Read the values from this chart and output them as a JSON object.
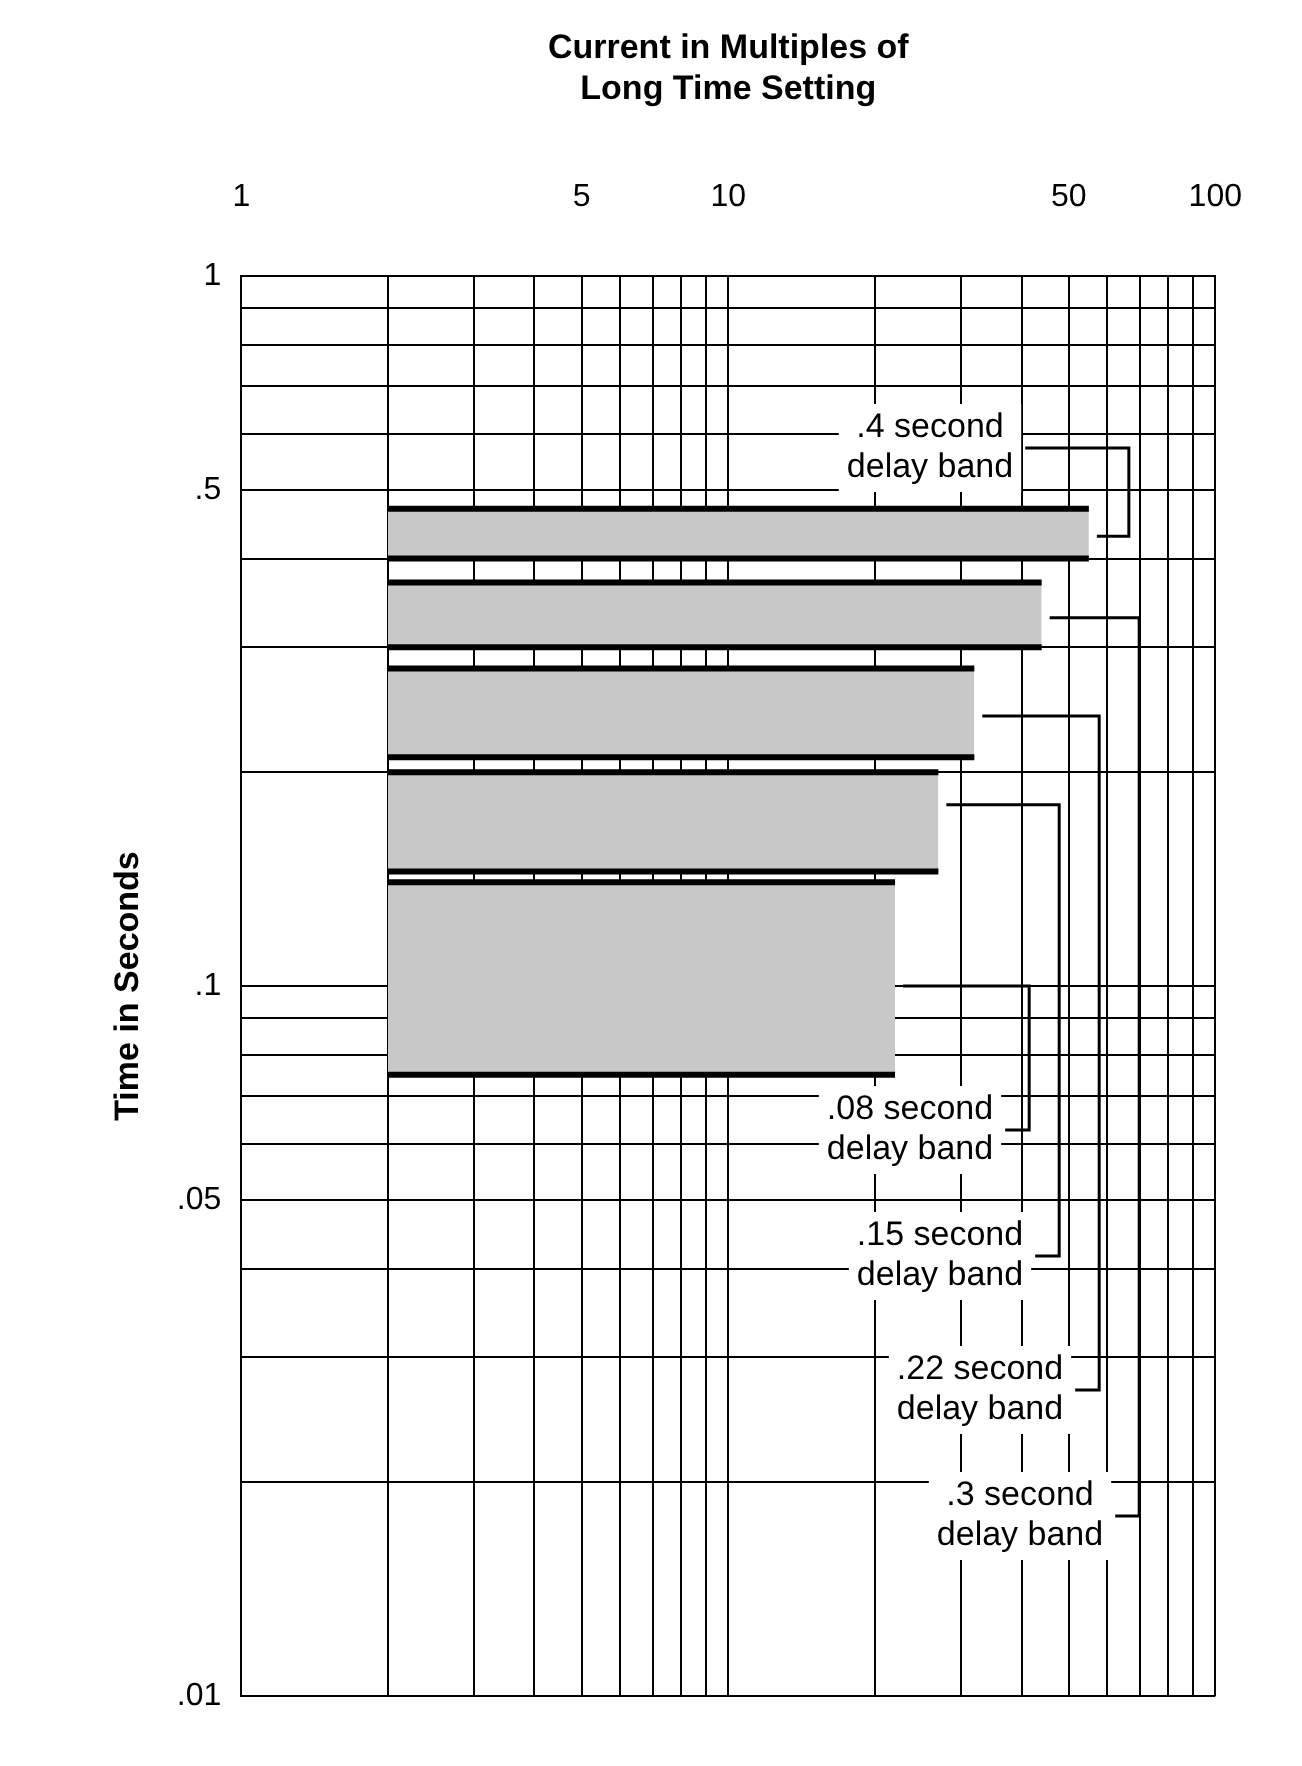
{
  "chart_data": {
    "type": "area",
    "xlabel": "Current in Multiples of Long Time Setting",
    "ylabel": "Time in Seconds",
    "log": "xy",
    "grid": true,
    "legend": false,
    "xlim": [
      1,
      100
    ],
    "ylim": [
      0.01,
      1
    ],
    "xticks": [
      1,
      {
        "value": 2,
        "label": null
      },
      {
        "value": 3,
        "label": null
      },
      {
        "value": 4,
        "label": null
      },
      5,
      {
        "value": 6,
        "label": null
      },
      {
        "value": 7,
        "label": null
      },
      {
        "value": 8,
        "label": null
      },
      {
        "value": 9,
        "label": null
      },
      10,
      {
        "value": 20,
        "label": null
      },
      {
        "value": 30,
        "label": null
      },
      {
        "value": 40,
        "label": null
      },
      50,
      {
        "value": 60,
        "label": null
      },
      {
        "value": 70,
        "label": null
      },
      {
        "value": 80,
        "label": null
      },
      {
        "value": 90,
        "label": null
      },
      100
    ],
    "yticks": [
      {
        "value": 0.01,
        "label": ".01"
      },
      {
        "value": 0.02,
        "label": null
      },
      {
        "value": 0.03,
        "label": null
      },
      {
        "value": 0.04,
        "label": null
      },
      {
        "value": 0.05,
        "label": ".05"
      },
      {
        "value": 0.06,
        "label": null
      },
      {
        "value": 0.07,
        "label": null
      },
      {
        "value": 0.08,
        "label": null
      },
      {
        "value": 0.09,
        "label": null
      },
      {
        "value": 0.1,
        "label": ".1"
      },
      {
        "value": 0.2,
        "label": null
      },
      {
        "value": 0.3,
        "label": null
      },
      {
        "value": 0.4,
        "label": null
      },
      {
        "value": 0.5,
        "label": ".5"
      },
      {
        "value": 0.6,
        "label": null
      },
      {
        "value": 0.7,
        "label": null
      },
      {
        "value": 0.8,
        "label": null
      },
      {
        "value": 0.9,
        "label": null
      },
      1
    ],
    "series": [
      {
        "type": "line",
        "color": "#000000",
        "x": [
          2,
          55
        ],
        "values": [
          0.4,
          0.4
        ]
      },
      {
        "color": "#c8c8c8",
        "x": [
          2,
          55
        ],
        "values": [
          0.47,
          0.47
        ]
      },
      {
        "type": "line",
        "color": "#000000",
        "x": [
          2,
          44
        ],
        "values": [
          0.3,
          0.3
        ]
      },
      {
        "color": "#c8c8c8",
        "x": [
          2,
          44
        ],
        "values": [
          0.37,
          0.37
        ]
      },
      {
        "type": "line",
        "color": "#000000",
        "x": [
          2,
          32
        ],
        "values": [
          0.21,
          0.21
        ]
      },
      {
        "color": "#c8c8c8",
        "x": [
          2,
          32
        ],
        "values": [
          0.28,
          0.28
        ]
      },
      {
        "type": "line",
        "color": "#000000",
        "x": [
          2,
          27
        ],
        "values": [
          0.145,
          0.145
        ]
      },
      {
        "color": "#c8c8c8",
        "x": [
          2,
          27
        ],
        "values": [
          0.2,
          0.2
        ]
      },
      {
        "type": "line",
        "color": "#000000",
        "x": [
          2,
          22
        ],
        "values": [
          0.075,
          0.075
        ]
      },
      {
        "color": "#c8c8c8",
        "x": [
          2,
          22
        ],
        "values": [
          0.14,
          0.14
        ]
      }
    ],
    "annotations": [
      {
        "text": ".4 second delay band",
        "x": 55,
        "y": 0.43
      },
      {
        "text": ".08 second delay band",
        "x": 22,
        "y": 0.1
      },
      {
        "text": ".15 second delay band",
        "x": 27,
        "y": 0.18
      },
      {
        "text": ".22 second delay band",
        "x": 32,
        "y": 0.24
      },
      {
        "text": ".3 second delay band",
        "x": 44,
        "y": 0.33
      }
    ]
  }
}
